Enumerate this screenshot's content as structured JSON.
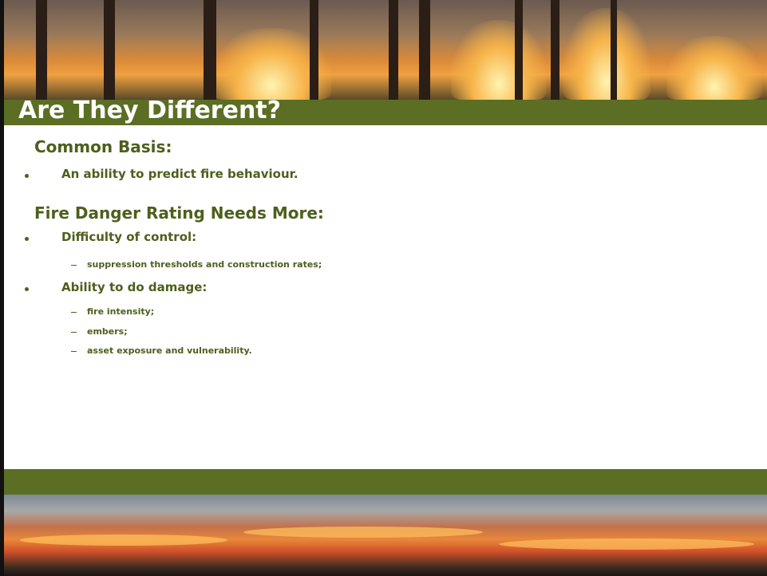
{
  "title": "Are They Different?",
  "sections": [
    {
      "heading": "Common Basis:",
      "bullets": [
        {
          "text": "An ability to predict fire behaviour.",
          "subitems": []
        }
      ]
    },
    {
      "heading": "Fire Danger Rating Needs More:",
      "bullets": [
        {
          "text": "Difficulty of control:",
          "subitems": [
            "suppression thresholds and construction rates;"
          ]
        },
        {
          "text": "Ability to do damage:",
          "subitems": [
            "fire intensity;",
            "embers;",
            "asset exposure and vulnerability."
          ]
        }
      ]
    }
  ]
}
